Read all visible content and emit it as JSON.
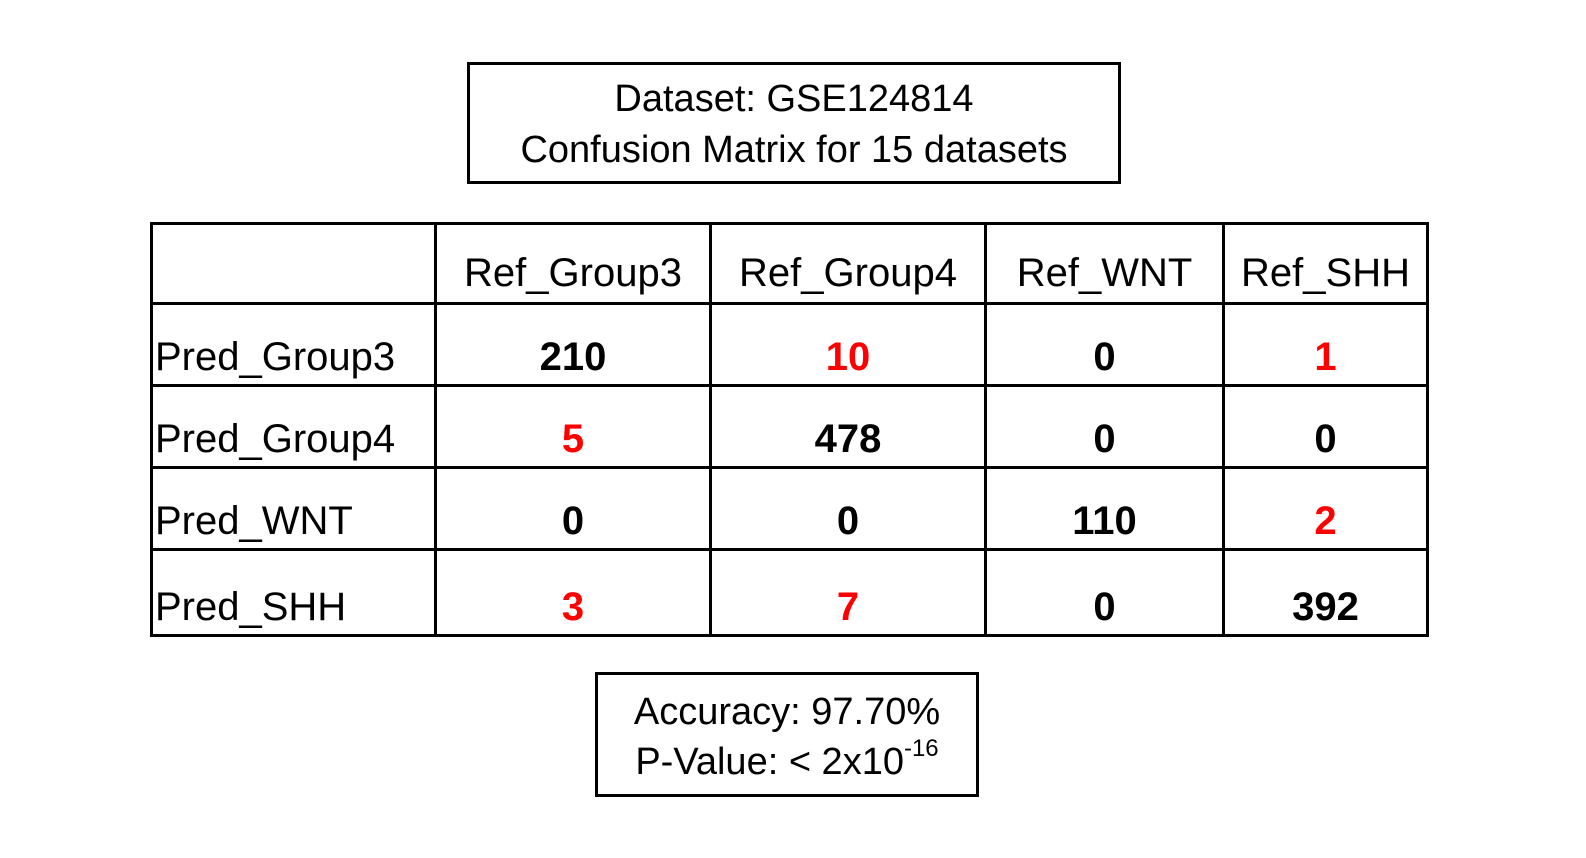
{
  "chart_data": {
    "type": "table",
    "title": "Dataset: GSE124814",
    "subtitle": "Confusion Matrix for 15 datasets",
    "columns": [
      "Ref_Group3",
      "Ref_Group4",
      "Ref_WNT",
      "Ref_SHH"
    ],
    "rows": [
      {
        "label": "Pred_Group3",
        "values": [
          "210",
          "10",
          "0",
          "1"
        ],
        "colors": [
          "#000000",
          "#ff0000",
          "#000000",
          "#ff0000"
        ]
      },
      {
        "label": "Pred_Group4",
        "values": [
          "5",
          "478",
          "0",
          "0"
        ],
        "colors": [
          "#ff0000",
          "#000000",
          "#000000",
          "#000000"
        ]
      },
      {
        "label": "Pred_WNT",
        "values": [
          "0",
          "0",
          "110",
          "2"
        ],
        "colors": [
          "#000000",
          "#000000",
          "#000000",
          "#ff0000"
        ]
      },
      {
        "label": "Pred_SHH",
        "values": [
          "3",
          "7",
          "0",
          "392"
        ],
        "colors": [
          "#ff0000",
          "#ff0000",
          "#000000",
          "#000000"
        ]
      }
    ],
    "accuracy_text": "Accuracy: 97.70%",
    "pvalue_prefix": "P-Value: < 2x10",
    "pvalue_exponent": "-16"
  },
  "colors": {
    "error_cell": "#ff0000",
    "correct_cell": "#000000"
  }
}
